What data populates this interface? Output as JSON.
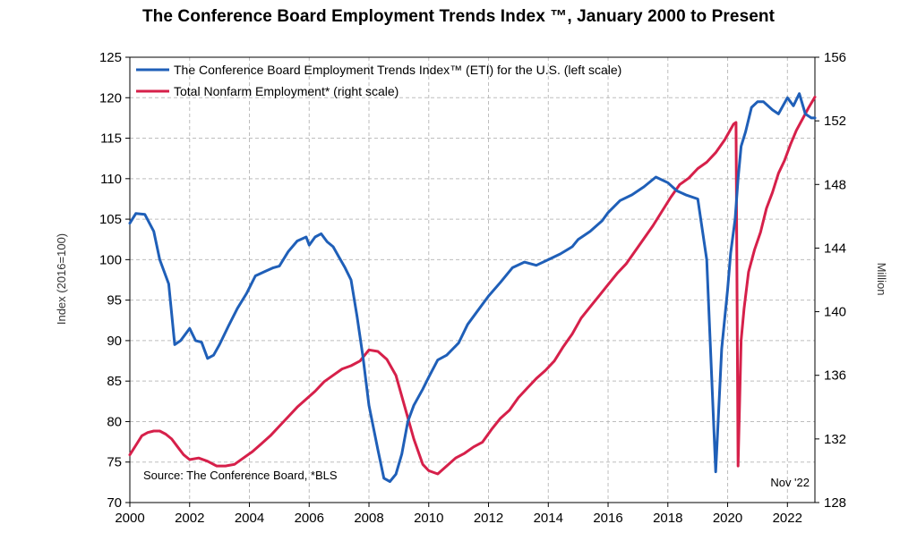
{
  "chart_data": {
    "type": "line",
    "title": "The Conference Board Employment Trends Index ™, January 2000 to Present",
    "ylabel_left": "Index (2016=100)",
    "ylabel_right": "Million",
    "source": "Source: The Conference Board, *BLS",
    "date_note": "Nov '22",
    "grid": true,
    "legend_position": "top-left",
    "xlim": [
      2000,
      2022.92
    ],
    "ylim_left": [
      70,
      125
    ],
    "ylim_right": [
      128,
      156
    ],
    "x_ticks": [
      "2000",
      "2002",
      "2004",
      "2006",
      "2008",
      "2010",
      "2012",
      "2014",
      "2016",
      "2018",
      "2020",
      "2022"
    ],
    "y_ticks_left": [
      "70",
      "75",
      "80",
      "85",
      "90",
      "95",
      "100",
      "105",
      "110",
      "115",
      "120",
      "125"
    ],
    "y_ticks_right": [
      "128",
      "132",
      "136",
      "140",
      "144",
      "148",
      "152",
      "156"
    ],
    "series": [
      {
        "name": "The Conference Board Employment Trends Index™ (ETI) for the U.S. (left scale)",
        "axis": "left",
        "color": "#1f5fb8",
        "x": [
          2000.0,
          2000.2,
          2000.5,
          2000.8,
          2001.0,
          2001.3,
          2001.5,
          2001.7,
          2002.0,
          2002.2,
          2002.4,
          2002.6,
          2002.8,
          2003.0,
          2003.3,
          2003.6,
          2003.9,
          2004.2,
          2004.5,
          2004.8,
          2005.0,
          2005.3,
          2005.6,
          2005.9,
          2006.0,
          2006.2,
          2006.4,
          2006.6,
          2006.8,
          2007.0,
          2007.2,
          2007.4,
          2007.6,
          2007.8,
          2008.0,
          2008.3,
          2008.5,
          2008.7,
          2008.9,
          2009.1,
          2009.3,
          2009.5,
          2009.8,
          2010.0,
          2010.3,
          2010.6,
          2011.0,
          2011.3,
          2011.6,
          2012.0,
          2012.4,
          2012.8,
          2013.2,
          2013.6,
          2014.0,
          2014.4,
          2014.8,
          2015.0,
          2015.4,
          2015.8,
          2016.0,
          2016.4,
          2016.8,
          2017.2,
          2017.6,
          2018.0,
          2018.3,
          2018.6,
          2019.0,
          2019.3,
          2019.6,
          2019.8,
          2020.0,
          2020.1,
          2020.25,
          2020.35,
          2020.45,
          2020.6,
          2020.8,
          2021.0,
          2021.2,
          2021.5,
          2021.7,
          2022.0,
          2022.2,
          2022.4,
          2022.6,
          2022.8,
          2022.92
        ],
        "values": [
          104.5,
          105.7,
          105.6,
          103.5,
          100.0,
          97.0,
          89.5,
          90.0,
          91.5,
          90.0,
          89.8,
          87.8,
          88.2,
          89.5,
          91.8,
          94.0,
          95.8,
          98.0,
          98.5,
          99.0,
          99.2,
          101.0,
          102.3,
          102.8,
          101.8,
          102.8,
          103.2,
          102.2,
          101.6,
          100.3,
          99.0,
          97.5,
          93.0,
          88.0,
          82.0,
          76.5,
          73.0,
          72.6,
          73.5,
          76.0,
          80.0,
          82.0,
          84.0,
          85.5,
          87.6,
          88.2,
          89.7,
          92.0,
          93.5,
          95.5,
          97.2,
          99.0,
          99.7,
          99.3,
          100.0,
          100.7,
          101.6,
          102.5,
          103.5,
          104.8,
          105.8,
          107.3,
          108.0,
          109.0,
          110.2,
          109.5,
          108.5,
          108.0,
          107.5,
          100.0,
          73.8,
          89.0,
          96.3,
          100.8,
          105.0,
          110.0,
          114.0,
          115.8,
          118.8,
          119.5,
          119.5,
          118.5,
          118.0,
          120.0,
          119.0,
          120.5,
          118.0,
          117.5,
          117.5
        ]
      },
      {
        "name": "Total Nonfarm Employment* (right scale)",
        "axis": "right",
        "color": "#d6204a",
        "x": [
          2000.0,
          2000.2,
          2000.4,
          2000.6,
          2000.8,
          2001.0,
          2001.2,
          2001.4,
          2001.6,
          2001.8,
          2002.0,
          2002.3,
          2002.6,
          2002.9,
          2003.2,
          2003.5,
          2003.8,
          2004.1,
          2004.4,
          2004.7,
          2005.0,
          2005.3,
          2005.6,
          2005.9,
          2006.2,
          2006.5,
          2006.8,
          2007.1,
          2007.4,
          2007.7,
          2008.0,
          2008.3,
          2008.6,
          2008.9,
          2009.2,
          2009.5,
          2009.8,
          2010.0,
          2010.3,
          2010.6,
          2010.9,
          2011.2,
          2011.5,
          2011.8,
          2012.1,
          2012.4,
          2012.7,
          2013.0,
          2013.3,
          2013.6,
          2013.9,
          2014.2,
          2014.5,
          2014.8,
          2015.1,
          2015.4,
          2015.7,
          2016.0,
          2016.3,
          2016.6,
          2016.9,
          2017.2,
          2017.5,
          2017.8,
          2018.1,
          2018.4,
          2018.7,
          2019.0,
          2019.3,
          2019.6,
          2019.9,
          2020.05,
          2020.2,
          2020.28,
          2020.35,
          2020.45,
          2020.55,
          2020.7,
          2020.9,
          2021.1,
          2021.3,
          2021.5,
          2021.7,
          2021.9,
          2022.1,
          2022.3,
          2022.5,
          2022.7,
          2022.92
        ],
        "values": [
          131.0,
          131.6,
          132.2,
          132.4,
          132.5,
          132.5,
          132.3,
          132.0,
          131.5,
          131.0,
          130.7,
          130.8,
          130.6,
          130.3,
          130.3,
          130.4,
          130.8,
          131.2,
          131.7,
          132.2,
          132.8,
          133.4,
          134.0,
          134.5,
          135.0,
          135.6,
          136.0,
          136.4,
          136.6,
          136.9,
          137.6,
          137.5,
          137.0,
          136.0,
          134.0,
          132.0,
          130.4,
          130.0,
          129.8,
          130.3,
          130.8,
          131.1,
          131.5,
          131.8,
          132.6,
          133.3,
          133.8,
          134.6,
          135.2,
          135.8,
          136.3,
          136.9,
          137.8,
          138.6,
          139.6,
          140.3,
          141.0,
          141.7,
          142.4,
          143.0,
          143.8,
          144.6,
          145.4,
          146.3,
          147.2,
          148.0,
          148.4,
          149.0,
          149.4,
          150.0,
          150.8,
          151.3,
          151.8,
          151.9,
          130.3,
          138.2,
          140.2,
          142.5,
          143.9,
          145.0,
          146.5,
          147.5,
          148.7,
          149.5,
          150.5,
          151.4,
          152.1,
          152.8,
          153.5
        ]
      }
    ]
  }
}
